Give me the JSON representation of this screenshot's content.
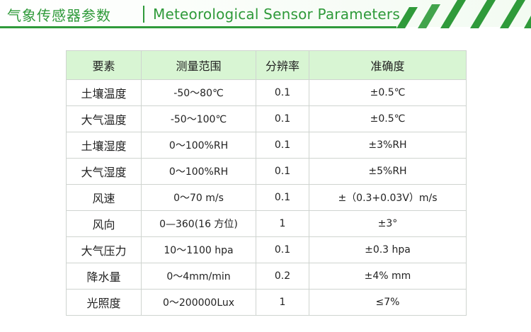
{
  "header": {
    "title_cn": "气象传感器参数",
    "title_en": "Meteorological Sensor Parameters",
    "accent_color": "#2f9a3a"
  },
  "table": {
    "columns": [
      "要素",
      "测量范围",
      "分辨率",
      "准确度"
    ],
    "rows": [
      {
        "element": "土壤温度",
        "range": "-50～80℃",
        "resolution": "0.1",
        "accuracy": "±0.5℃"
      },
      {
        "element": "大气温度",
        "range": "-50～100℃",
        "resolution": "0.1",
        "accuracy": "±0.5℃"
      },
      {
        "element": "土壤湿度",
        "range": "0～100%RH",
        "resolution": "0.1",
        "accuracy": "±3%RH"
      },
      {
        "element": "大气湿度",
        "range": "0～100%RH",
        "resolution": "0.1",
        "accuracy": "±5%RH"
      },
      {
        "element": "风速",
        "range": "0～70 m/s",
        "resolution": "0.1",
        "accuracy": "±（0.3+0.03V）m/s"
      },
      {
        "element": "风向",
        "range": "0—360(16 方位)",
        "resolution": "1",
        "accuracy": "±3°"
      },
      {
        "element": "大气压力",
        "range": "10～1100 hpa",
        "resolution": "0.1",
        "accuracy": "±0.3 hpa"
      },
      {
        "element": "降水量",
        "range": "0～4mm/min",
        "resolution": "0.2",
        "accuracy": "±4% mm"
      },
      {
        "element": "光照度",
        "range": "0～200000Lux",
        "resolution": "1",
        "accuracy": "≤7%"
      }
    ],
    "header_bg": "#d8f5d3",
    "border_color": "#cfd4d0"
  }
}
